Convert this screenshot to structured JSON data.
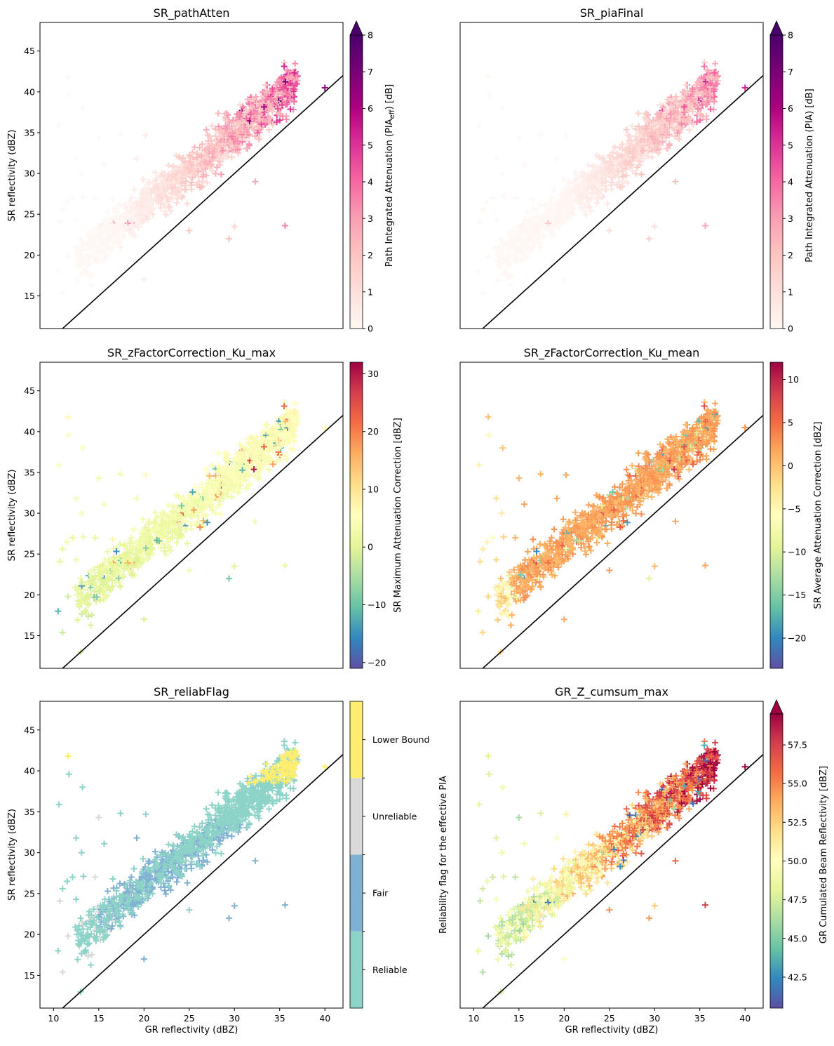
{
  "figure": {
    "xlabel": "GR reflectivity (dBZ)",
    "ylabel": "SR reflectivity (dBZ)",
    "ylabel_alt": "Reliability flag for the effective PIA",
    "x_ticks": [
      "10",
      "15",
      "20",
      "25",
      "30",
      "35",
      "40"
    ],
    "y_ticks": [
      "15",
      "20",
      "25",
      "30",
      "35",
      "40",
      "45"
    ]
  },
  "chart_data": [
    {
      "type": "scatter",
      "title": "SR_pathAtten",
      "colorbar_label": "Path Integrated Attenuation (PIA",
      "colorbar_label_sub": "eff",
      "colorbar_label_end": ") [dB]",
      "colormap": "RdPu",
      "vmin": 0,
      "vmax": 8,
      "extend_max": true,
      "ticks": [
        "0",
        "1",
        "2",
        "3",
        "4",
        "5",
        "6",
        "7",
        "8"
      ],
      "xlim": [
        8.5,
        42
      ],
      "ylim": [
        11,
        48.5
      ],
      "one_to_one_line": true
    },
    {
      "type": "scatter",
      "title": "SR_piaFinal",
      "colorbar_label": "Path Integrated Attenuation (PIA) [dB]",
      "colormap": "RdPu",
      "vmin": 0,
      "vmax": 8,
      "extend_max": true,
      "ticks": [
        "0",
        "1",
        "2",
        "3",
        "4",
        "5",
        "6",
        "7",
        "8"
      ],
      "xlim": [
        8.5,
        42
      ],
      "ylim": [
        11,
        48.5
      ],
      "one_to_one_line": true
    },
    {
      "type": "scatter",
      "title": "SR_zFactorCorrection_Ku_max",
      "colorbar_label": "SR Maximum Attenuation Correction [dBZ]",
      "colormap": "Spectral_r",
      "vmin": -21,
      "vmax": 32,
      "ticks": [
        "−20",
        "−10",
        "0",
        "10",
        "20",
        "30"
      ],
      "tick_values": [
        -20,
        -10,
        0,
        10,
        20,
        30
      ],
      "xlim": [
        8.5,
        42
      ],
      "ylim": [
        11,
        48.5
      ],
      "one_to_one_line": true
    },
    {
      "type": "scatter",
      "title": "SR_zFactorCorrection_Ku_mean",
      "colorbar_label": "SR Average Attenuation Correction [dBZ]",
      "colormap": "Spectral_r",
      "vmin": -23.5,
      "vmax": 12,
      "ticks": [
        "−20",
        "−15",
        "−10",
        "−5",
        "0",
        "5",
        "10"
      ],
      "tick_values": [
        -20,
        -15,
        -10,
        -5,
        0,
        5,
        10
      ],
      "xlim": [
        8.5,
        42
      ],
      "ylim": [
        11,
        48.5
      ],
      "one_to_one_line": true
    },
    {
      "type": "scatter",
      "title": "SR_reliabFlag",
      "colorbar_categories": [
        "Reliable",
        "Fair",
        "Unreliable",
        "Lower Bound"
      ],
      "category_colors": [
        "#8dd3c7",
        "#80b1d3",
        "#d9d9d9",
        "#ffed6f"
      ],
      "xlim": [
        8.5,
        42
      ],
      "ylim": [
        11,
        48.5
      ],
      "one_to_one_line": true
    },
    {
      "type": "scatter",
      "title": "GR_Z_cumsum_max",
      "colorbar_label": "GR Cumulated Beam Reflectivity [dBZ]",
      "colormap": "Spectral_r",
      "vmin": 40.5,
      "vmax": 59.5,
      "extend_max": true,
      "ticks": [
        "42.5",
        "45.0",
        "47.5",
        "50.0",
        "52.5",
        "55.0",
        "57.5"
      ],
      "tick_values": [
        42.5,
        45,
        47.5,
        50,
        52.5,
        55,
        57.5
      ],
      "xlim": [
        8.5,
        42
      ],
      "ylim": [
        11,
        48.5
      ],
      "one_to_one_line": true
    }
  ]
}
